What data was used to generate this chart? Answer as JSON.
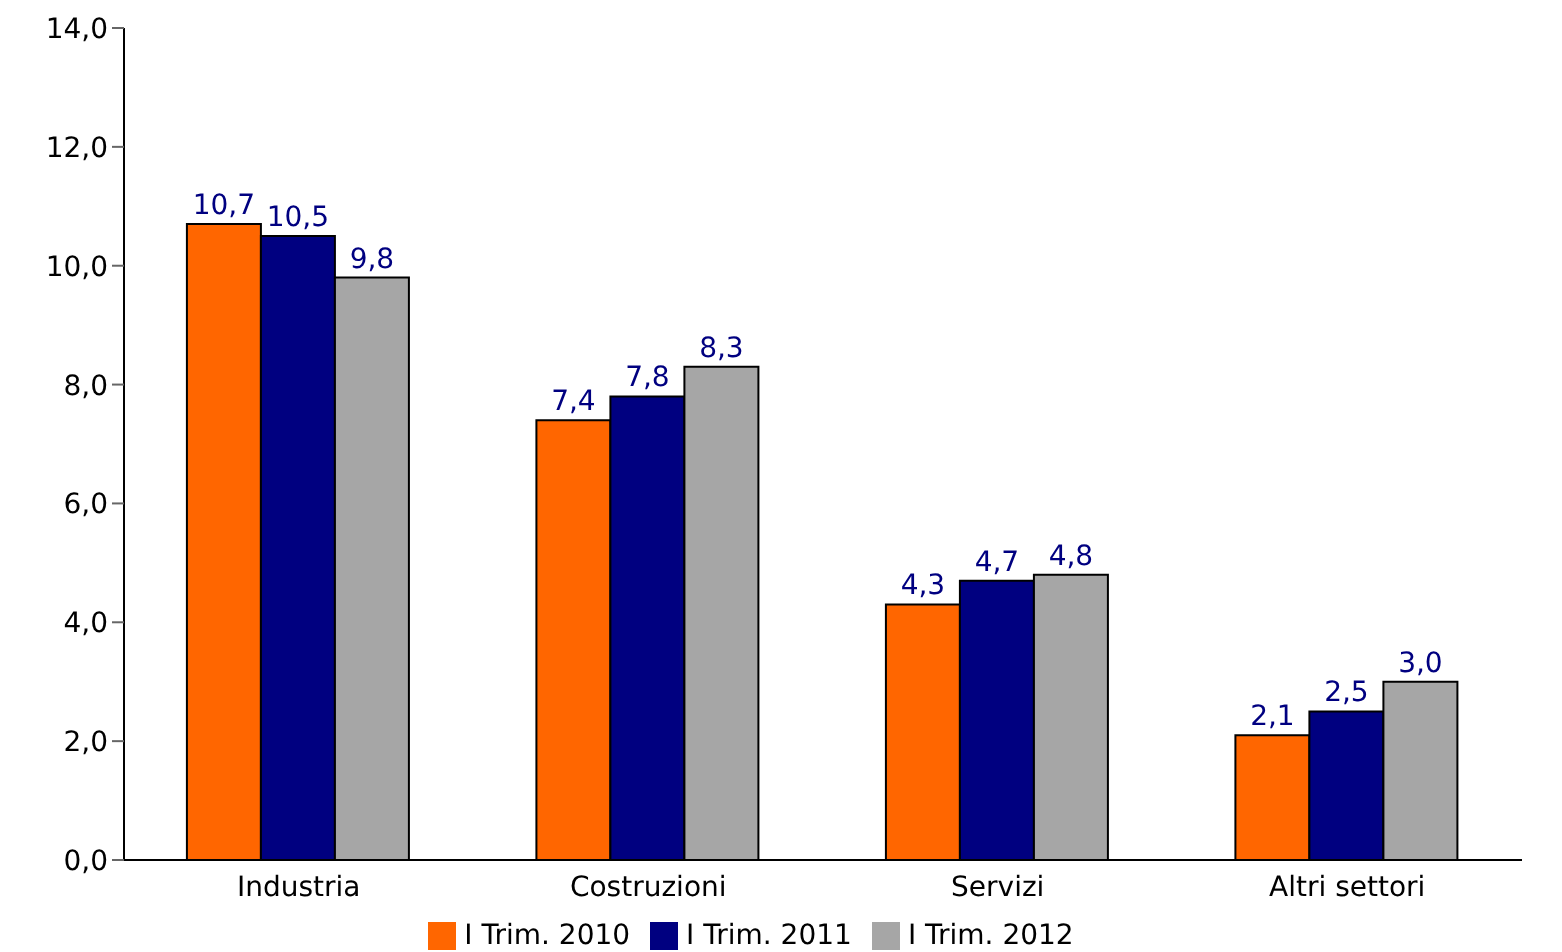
{
  "chart_data": {
    "type": "bar",
    "categories": [
      "Industria",
      "Costruzioni",
      "Servizi",
      "Altri settori"
    ],
    "series": [
      {
        "name": "I Trim. 2010",
        "color": "#ff6600",
        "values": [
          10.7,
          7.4,
          4.3,
          2.1
        ],
        "value_labels": [
          "10,7",
          "7,4",
          "4,3",
          "2,1"
        ]
      },
      {
        "name": "I Trim. 2011",
        "color": "#000080",
        "values": [
          10.5,
          7.8,
          4.7,
          2.5
        ],
        "value_labels": [
          "10,5",
          "7,8",
          "4,7",
          "2,5"
        ]
      },
      {
        "name": "I Trim. 2012",
        "color": "#a6a6a6",
        "values": [
          9.8,
          8.3,
          4.8,
          3.0
        ],
        "value_labels": [
          "9,8",
          "8,3",
          "4,8",
          "3,0"
        ]
      }
    ],
    "ylim": [
      0,
      14
    ],
    "yticks": [
      {
        "value": 0,
        "label": "0,0"
      },
      {
        "value": 2,
        "label": "2,0"
      },
      {
        "value": 4,
        "label": "4,0"
      },
      {
        "value": 6,
        "label": "6,0"
      },
      {
        "value": 8,
        "label": "8,0"
      },
      {
        "value": 10,
        "label": "10,0"
      },
      {
        "value": 12,
        "label": "12,0"
      },
      {
        "value": 14,
        "label": "14,0"
      }
    ],
    "legend": "bottom",
    "grid": false
  }
}
